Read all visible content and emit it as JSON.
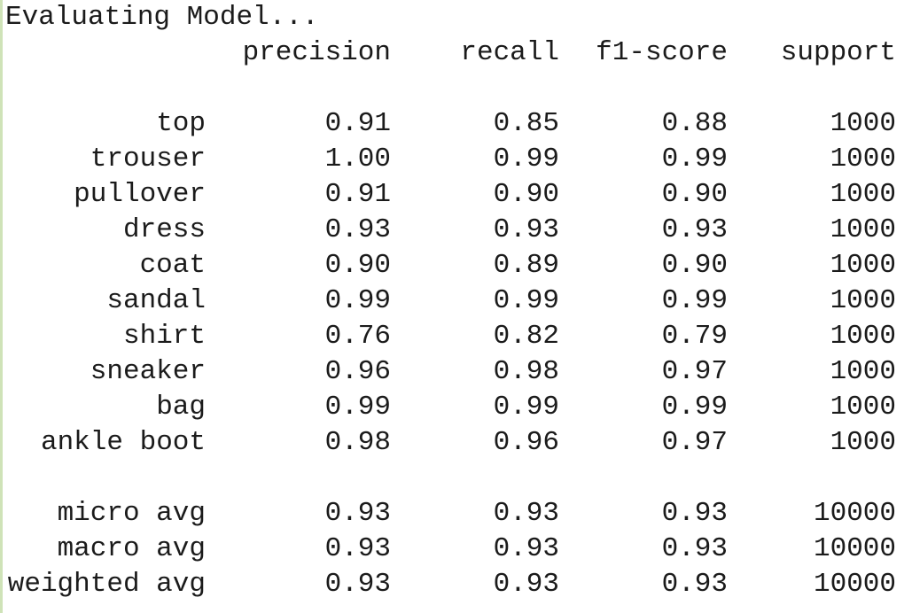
{
  "header": "Evaluating Model...",
  "table": {
    "columns": [
      "precision",
      "recall",
      "f1-score",
      "support"
    ],
    "rows": [
      [
        "top",
        "0.91",
        "0.85",
        "0.88",
        "1000"
      ],
      [
        "trouser",
        "1.00",
        "0.99",
        "0.99",
        "1000"
      ],
      [
        "pullover",
        "0.91",
        "0.90",
        "0.90",
        "1000"
      ],
      [
        "dress",
        "0.93",
        "0.93",
        "0.93",
        "1000"
      ],
      [
        "coat",
        "0.90",
        "0.89",
        "0.90",
        "1000"
      ],
      [
        "sandal",
        "0.99",
        "0.99",
        "0.99",
        "1000"
      ],
      [
        "shirt",
        "0.76",
        "0.82",
        "0.79",
        "1000"
      ],
      [
        "sneaker",
        "0.96",
        "0.98",
        "0.97",
        "1000"
      ],
      [
        "bag",
        "0.99",
        "0.99",
        "0.99",
        "1000"
      ],
      [
        "ankle boot",
        "0.98",
        "0.96",
        "0.97",
        "1000"
      ]
    ],
    "averages": [
      [
        "micro avg",
        "0.93",
        "0.93",
        "0.93",
        "10000"
      ],
      [
        "macro avg",
        "0.93",
        "0.93",
        "0.93",
        "10000"
      ],
      [
        "weighted avg",
        "0.93",
        "0.93",
        "0.93",
        "10000"
      ]
    ]
  }
}
